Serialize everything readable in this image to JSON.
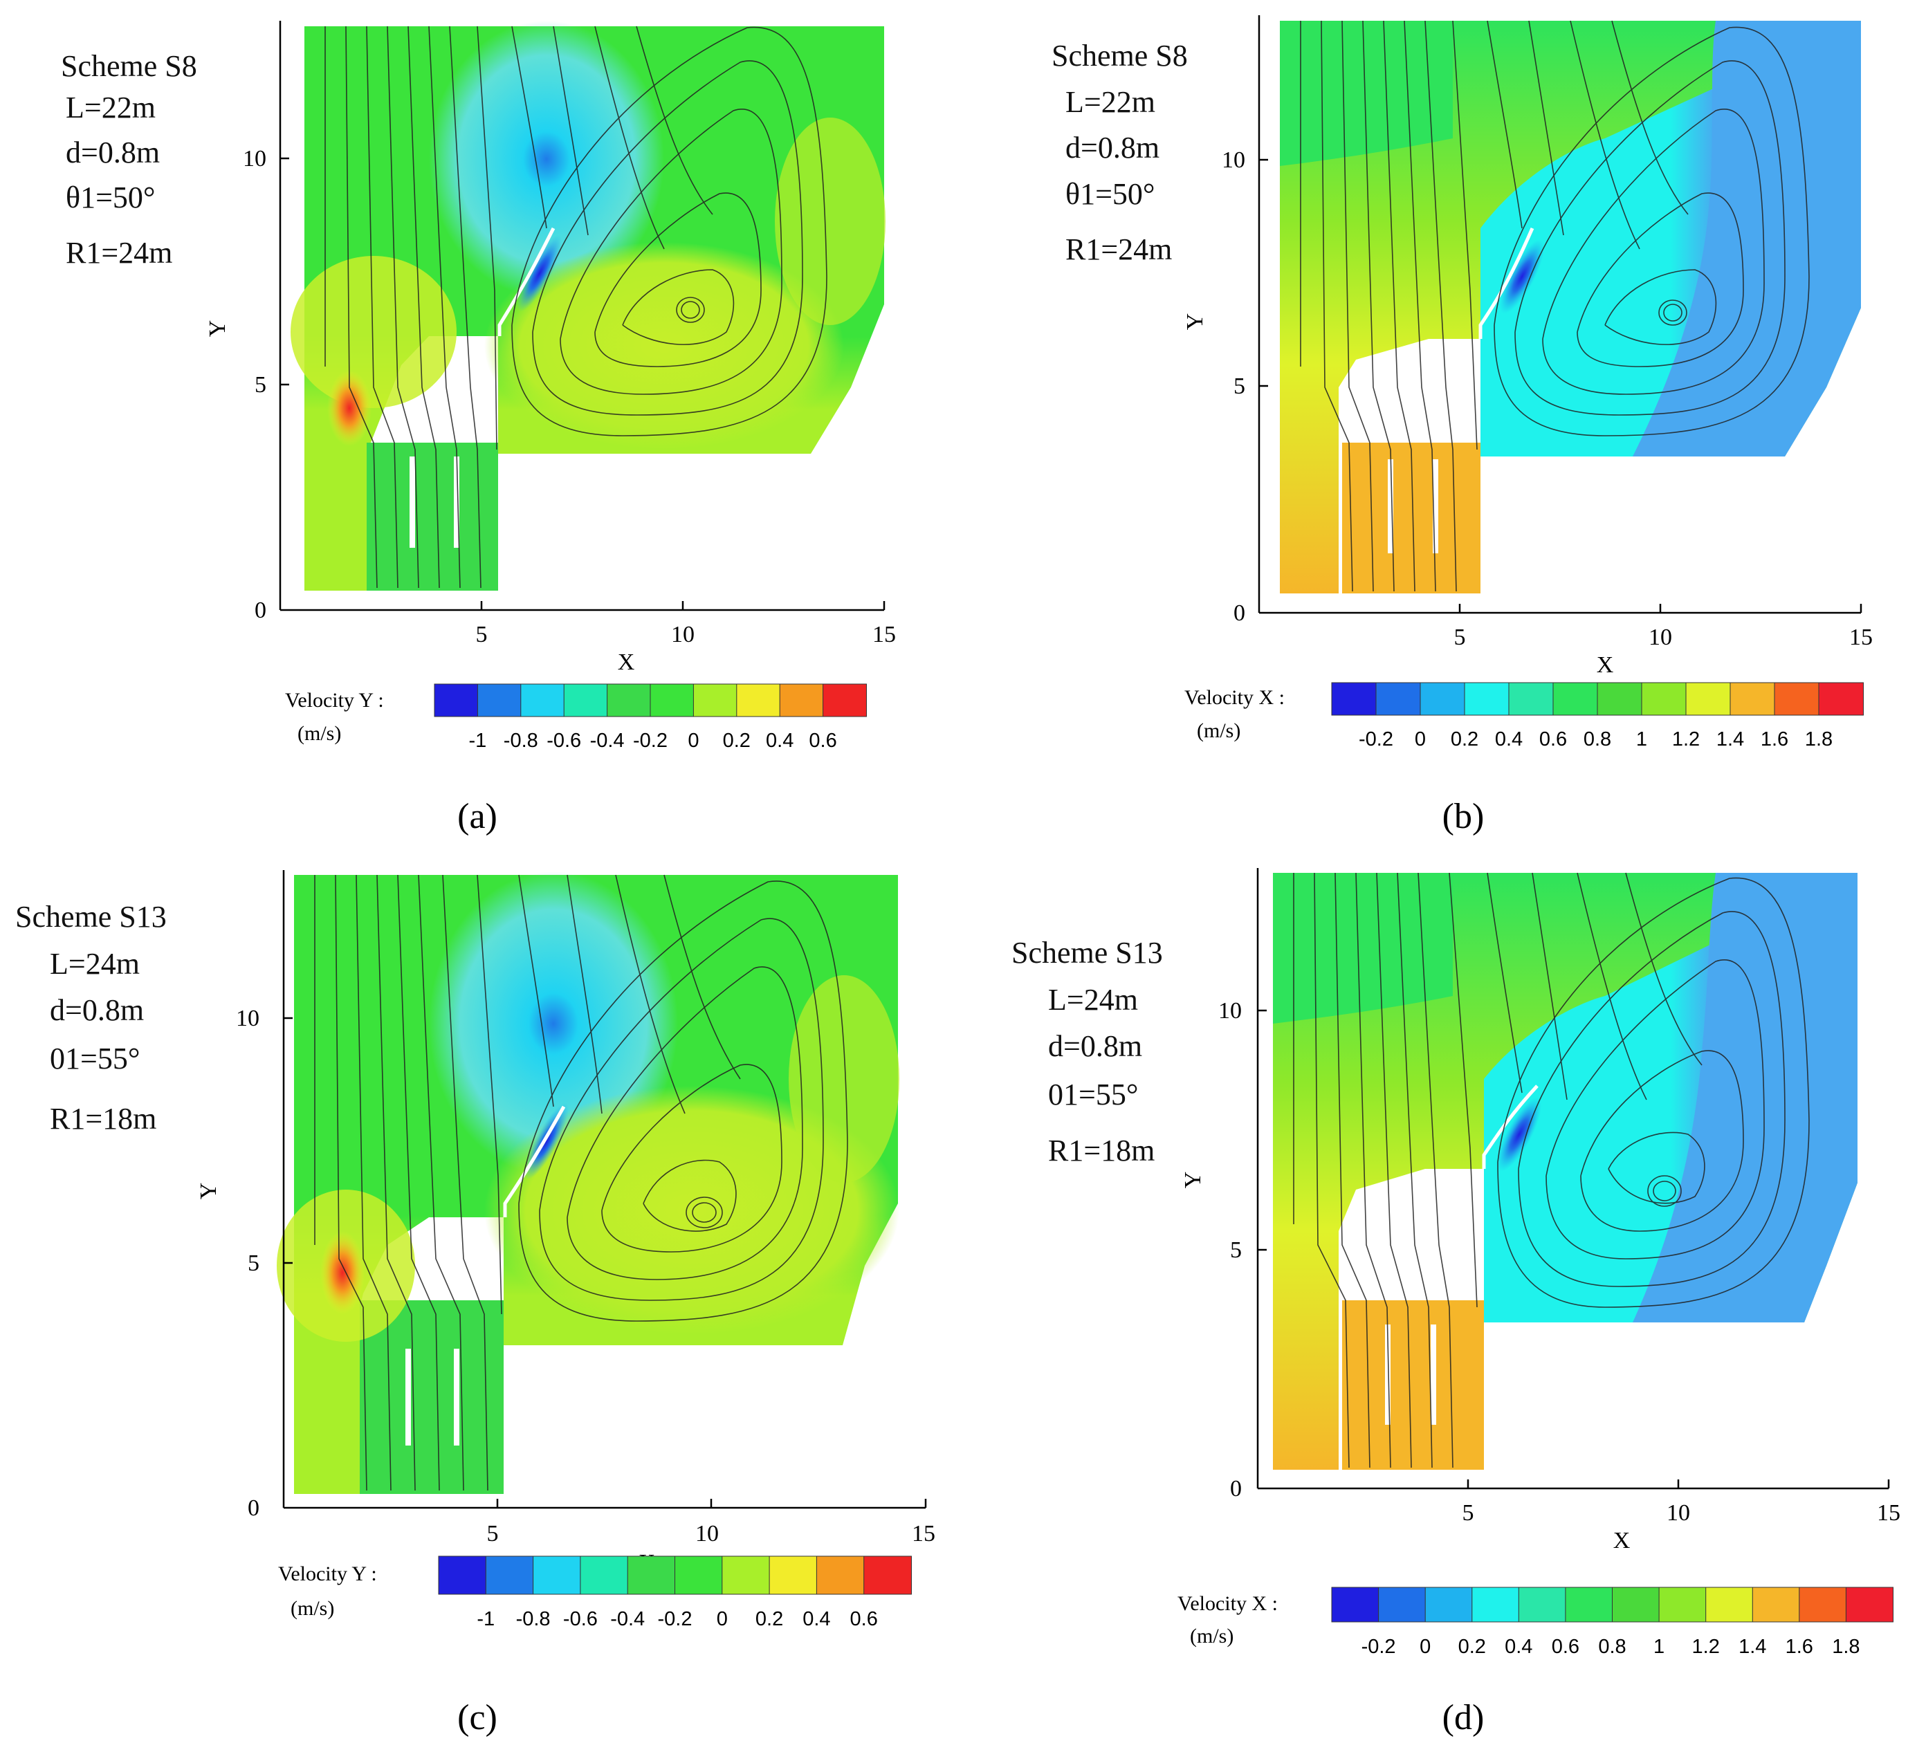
{
  "figure": {
    "panels": [
      {
        "caption": "(a)",
        "scheme_lines": [
          "Scheme S8",
          "L=22m",
          "d=0.8m",
          "θ1=50°",
          "R1=24m"
        ],
        "colorbar": {
          "title": "Velocity Y :",
          "unit": "(m/s)",
          "ticks": [
            "-1",
            "-0.8",
            "-0.6",
            "-0.4",
            "-0.2",
            "0",
            "0.2",
            "0.4",
            "0.6"
          ],
          "colors": [
            "#1f1fe0",
            "#1f7be8",
            "#1fd3f2",
            "#1fe8b0",
            "#3bd94a",
            "#3be33b",
            "#a8ef2a",
            "#f2ec2a",
            "#f59a1f",
            "#ef2424"
          ]
        }
      },
      {
        "caption": "(b)",
        "scheme_lines": [
          "Scheme S8",
          "L=22m",
          "d=0.8m",
          "θ1=50°",
          "R1=24m"
        ],
        "colorbar": {
          "title": "Velocity X :",
          "unit": "(m/s)",
          "ticks": [
            "-0.2",
            "0",
            "0.2",
            "0.4",
            "0.6",
            "0.8",
            "1",
            "1.2",
            "1.4",
            "1.6",
            "1.8"
          ],
          "colors": [
            "#1f1fe0",
            "#1f6fe8",
            "#1fb2ef",
            "#1ff2ec",
            "#2ae6a8",
            "#2ee35b",
            "#4ad93b",
            "#8ee82a",
            "#dff22a",
            "#f5b62a",
            "#f5631f",
            "#ef1f2e"
          ]
        }
      },
      {
        "caption": "(c)",
        "scheme_lines": [
          "Scheme S13",
          "L=24m",
          "d=0.8m",
          "01=55°",
          "R1=18m"
        ],
        "colorbar": {
          "title": "Velocity Y :",
          "unit": "(m/s)",
          "ticks": [
            "-1",
            "-0.8",
            "-0.6",
            "-0.4",
            "-0.2",
            "0",
            "0.2",
            "0.4",
            "0.6"
          ],
          "colors": [
            "#1f1fe0",
            "#1f7be8",
            "#1fd3f2",
            "#1fe8b0",
            "#3bd94a",
            "#3be33b",
            "#a8ef2a",
            "#f2ec2a",
            "#f59a1f",
            "#ef2424"
          ]
        }
      },
      {
        "caption": "(d)",
        "scheme_lines": [
          "Scheme S13",
          "L=24m",
          "d=0.8m",
          "01=55°",
          "R1=18m"
        ],
        "colorbar": {
          "title": "Velocity X :",
          "unit": "(m/s)",
          "ticks": [
            "-0.2",
            "0",
            "0.2",
            "0.4",
            "0.6",
            "0.8",
            "1",
            "1.2",
            "1.4",
            "1.6",
            "1.8"
          ],
          "colors": [
            "#1f1fe0",
            "#1f6fe8",
            "#1fb2ef",
            "#1ff2ec",
            "#2ae6a8",
            "#2ee35b",
            "#4ad93b",
            "#8ee82a",
            "#dff22a",
            "#f5b62a",
            "#f5631f",
            "#ef1f2e"
          ]
        }
      }
    ]
  },
  "chart_data": [
    {
      "type": "heatmap",
      "xlabel": "X",
      "ylabel": "Y",
      "xlim": [
        0,
        15
      ],
      "ylim": [
        0,
        13
      ],
      "x_ticks": [
        "5",
        "10",
        "15"
      ],
      "y_ticks": [
        "0",
        "5",
        "10"
      ],
      "field": "Velocity Y",
      "vortex_center": [
        10.3,
        6.6
      ]
    },
    {
      "type": "heatmap",
      "xlabel": "X",
      "ylabel": "Y",
      "xlim": [
        0,
        15
      ],
      "ylim": [
        0,
        13
      ],
      "x_ticks": [
        "5",
        "10",
        "15"
      ],
      "y_ticks": [
        "0",
        "5",
        "10"
      ],
      "field": "Velocity X",
      "vortex_center": [
        10.3,
        6.6
      ]
    },
    {
      "type": "heatmap",
      "xlabel": "X",
      "ylabel": "Y",
      "xlim": [
        0,
        15
      ],
      "ylim": [
        0,
        13
      ],
      "x_ticks": [
        "5",
        "10",
        "15"
      ],
      "y_ticks": [
        "0",
        "5",
        "10"
      ],
      "field": "Velocity Y",
      "vortex_center": [
        9.7,
        6.2
      ]
    },
    {
      "type": "heatmap",
      "xlabel": "X",
      "ylabel": "Y",
      "xlim": [
        0,
        15
      ],
      "ylim": [
        0,
        13
      ],
      "x_ticks": [
        "5",
        "10",
        "15"
      ],
      "y_ticks": [
        "0",
        "5",
        "10"
      ],
      "field": "Velocity X",
      "vortex_center": [
        9.8,
        6.3
      ]
    }
  ]
}
